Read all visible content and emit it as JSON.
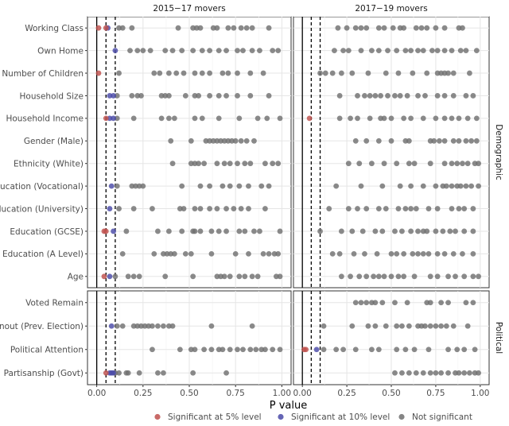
{
  "chart_data": {
    "type": "scatter",
    "xlabel": "P value",
    "xlim": [
      0,
      1
    ],
    "xticks": [
      0,
      0.25,
      0.5,
      0.75,
      1
    ],
    "xtick_labels": [
      "0.00",
      "0.25",
      "0.50",
      "0.75",
      "1.00"
    ],
    "reference_lines": [
      {
        "x": 0,
        "style": "solid"
      },
      {
        "x": 0.05,
        "style": "dashed"
      },
      {
        "x": 0.1,
        "style": "dashed"
      }
    ],
    "columns": [
      "2015−17 movers",
      "2017−19 movers"
    ],
    "rows": [
      {
        "name": "Demographic",
        "variables": [
          "Working Class",
          "Own Home",
          "Number of Children",
          "Household Size",
          "Household Income",
          "Gender (Male)",
          "Ethnicity (White)",
          "Education (Vocational)",
          "Education (University)",
          "Education (GCSE)",
          "Education (A Level)",
          "Age"
        ]
      },
      {
        "name": "Political",
        "variables": [
          "Voted Remain",
          "Turnout (Prev. Election)",
          "Political Attention",
          "Partisanship (Govt)"
        ]
      }
    ],
    "legend": {
      "position": "bottom",
      "items": [
        {
          "key": "sig5",
          "label": "Significant at 5% level",
          "color": "#c0504d"
        },
        {
          "key": "sig10",
          "label": "Significant at 10% level",
          "color": "#4a4aa8"
        },
        {
          "key": "ns",
          "label": "Not significant",
          "color": "#707070"
        }
      ]
    },
    "series": [
      {
        "column": 0,
        "variable": "Working Class",
        "sig5": [
          0.01,
          0.05
        ],
        "sig10": [
          0.06
        ],
        "ns": [
          0.12,
          0.14,
          0.19,
          0.44,
          0.52,
          0.54,
          0.56,
          0.63,
          0.65,
          0.71,
          0.74,
          0.78,
          0.81,
          0.84,
          0.93
        ]
      },
      {
        "column": 0,
        "variable": "Own Home",
        "sig5": [],
        "sig10": [
          0.1
        ],
        "ns": [
          0.18,
          0.22,
          0.25,
          0.29,
          0.37,
          0.41,
          0.46,
          0.52,
          0.57,
          0.61,
          0.66,
          0.7,
          0.76,
          0.79,
          0.84,
          0.88,
          0.95,
          0.98
        ]
      },
      {
        "column": 0,
        "variable": "Number of Children",
        "sig5": [
          0.01
        ],
        "sig10": [],
        "ns": [
          0.12,
          0.31,
          0.34,
          0.39,
          0.43,
          0.47,
          0.53,
          0.57,
          0.61,
          0.68,
          0.71,
          0.76,
          0.83,
          0.9
        ]
      },
      {
        "column": 0,
        "variable": "Household Size",
        "sig5": [],
        "sig10": [
          0.07,
          0.09
        ],
        "ns": [
          0.11,
          0.19,
          0.22,
          0.24,
          0.35,
          0.37,
          0.39,
          0.48,
          0.53,
          0.55,
          0.61,
          0.66,
          0.7,
          0.76,
          0.83,
          0.93
        ]
      },
      {
        "column": 0,
        "variable": "Household Income",
        "sig5": [
          0.05
        ],
        "sig10": [
          0.07,
          0.09
        ],
        "ns": [
          0.11,
          0.2,
          0.35,
          0.39,
          0.42,
          0.53,
          0.57,
          0.66,
          0.77,
          0.87,
          0.92,
          0.99
        ]
      },
      {
        "column": 0,
        "variable": "Gender (Male)",
        "sig5": [],
        "sig10": [],
        "ns": [
          0.4,
          0.51,
          0.59,
          0.61,
          0.63,
          0.65,
          0.67,
          0.69,
          0.71,
          0.73,
          0.75,
          0.78,
          0.81,
          0.85
        ]
      },
      {
        "column": 0,
        "variable": "Ethnicity (White)",
        "sig5": [],
        "sig10": [],
        "ns": [
          0.41,
          0.51,
          0.53,
          0.55,
          0.58,
          0.65,
          0.69,
          0.72,
          0.76,
          0.8,
          0.83,
          0.91,
          0.95,
          0.98
        ]
      },
      {
        "column": 0,
        "variable": "Education (Vocational)",
        "sig5": [],
        "sig10": [
          0.08
        ],
        "ns": [
          0.11,
          0.19,
          0.21,
          0.23,
          0.25,
          0.46,
          0.56,
          0.61,
          0.68,
          0.72,
          0.77,
          0.82,
          0.89,
          0.93
        ]
      },
      {
        "column": 0,
        "variable": "Education (University)",
        "sig5": [],
        "sig10": [
          0.07
        ],
        "ns": [
          0.12,
          0.2,
          0.3,
          0.45,
          0.47,
          0.53,
          0.56,
          0.61,
          0.65,
          0.7,
          0.74,
          0.78,
          0.82,
          0.91
        ]
      },
      {
        "column": 0,
        "variable": "Education (GCSE)",
        "sig5": [
          0.04,
          0.05
        ],
        "sig10": [
          0.09
        ],
        "ns": [
          0.16,
          0.33,
          0.39,
          0.46,
          0.52,
          0.53,
          0.56,
          0.62,
          0.66,
          0.7,
          0.77,
          0.8,
          0.85,
          0.88,
          0.99
        ]
      },
      {
        "column": 0,
        "variable": "Education (A Level)",
        "sig5": [],
        "sig10": [],
        "ns": [
          0.14,
          0.31,
          0.36,
          0.38,
          0.4,
          0.42,
          0.48,
          0.51,
          0.62,
          0.75,
          0.82,
          0.9,
          0.93,
          0.96,
          0.98
        ]
      },
      {
        "column": 0,
        "variable": "Age",
        "sig5": [
          0.04
        ],
        "sig10": [
          0.07
        ],
        "ns": [
          0.1,
          0.17,
          0.2,
          0.23,
          0.37,
          0.52,
          0.65,
          0.67,
          0.69,
          0.72,
          0.77,
          0.8,
          0.84,
          0.87,
          0.97,
          0.99
        ]
      },
      {
        "column": 0,
        "variable": "Voted Remain",
        "sig5": [],
        "sig10": [],
        "ns": []
      },
      {
        "column": 0,
        "variable": "Turnout (Prev. Election)",
        "sig5": [],
        "sig10": [
          0.08
        ],
        "ns": [
          0.11,
          0.14,
          0.2,
          0.22,
          0.24,
          0.26,
          0.28,
          0.3,
          0.33,
          0.36,
          0.39,
          0.41,
          0.62,
          0.84
        ]
      },
      {
        "column": 0,
        "variable": "Political Attention",
        "sig5": [],
        "sig10": [],
        "ns": [
          0.3,
          0.45,
          0.51,
          0.53,
          0.58,
          0.62,
          0.66,
          0.68,
          0.72,
          0.76,
          0.79,
          0.83,
          0.86,
          0.89,
          0.91,
          0.95,
          0.99
        ]
      },
      {
        "column": 0,
        "variable": "Partisanship (Govt)",
        "sig5": [
          0.05
        ],
        "sig10": [
          0.07,
          0.08,
          0.09
        ],
        "ns": [
          0.1,
          0.12,
          0.16,
          0.17,
          0.23,
          0.33,
          0.36,
          0.52,
          0.7
        ]
      },
      {
        "column": 1,
        "variable": "Working Class",
        "sig5": [],
        "sig10": [],
        "ns": [
          0.2,
          0.25,
          0.3,
          0.33,
          0.36,
          0.43,
          0.46,
          0.51,
          0.55,
          0.57,
          0.64,
          0.67,
          0.7,
          0.75,
          0.8,
          0.88,
          0.9
        ]
      },
      {
        "column": 1,
        "variable": "Own Home",
        "sig5": [],
        "sig10": [],
        "ns": [
          0.18,
          0.23,
          0.26,
          0.33,
          0.39,
          0.43,
          0.48,
          0.53,
          0.58,
          0.61,
          0.65,
          0.68,
          0.73,
          0.76,
          0.8,
          0.84,
          0.89,
          0.92,
          0.98
        ]
      },
      {
        "column": 1,
        "variable": "Number of Children",
        "sig5": [],
        "sig10": [],
        "ns": [
          0.1,
          0.13,
          0.17,
          0.22,
          0.28,
          0.37,
          0.47,
          0.54,
          0.62,
          0.7,
          0.76,
          0.78,
          0.8,
          0.82,
          0.85,
          0.94
        ]
      },
      {
        "column": 1,
        "variable": "Household Size",
        "sig5": [],
        "sig10": [],
        "ns": [
          0.21,
          0.31,
          0.35,
          0.38,
          0.41,
          0.44,
          0.48,
          0.52,
          0.55,
          0.59,
          0.65,
          0.69,
          0.76,
          0.8,
          0.85,
          0.92,
          0.96
        ]
      },
      {
        "column": 1,
        "variable": "Household Income",
        "sig5": [
          0.04
        ],
        "sig10": [],
        "ns": [
          0.21,
          0.27,
          0.31,
          0.38,
          0.44,
          0.46,
          0.5,
          0.57,
          0.61,
          0.68,
          0.75,
          0.8,
          0.84,
          0.88,
          0.93,
          0.98
        ]
      },
      {
        "column": 1,
        "variable": "Gender (Male)",
        "sig5": [],
        "sig10": [],
        "ns": [
          0.3,
          0.36,
          0.43,
          0.5,
          0.58,
          0.6,
          0.72,
          0.74,
          0.77,
          0.8,
          0.85,
          0.88,
          0.92,
          0.95,
          0.98
        ]
      },
      {
        "column": 1,
        "variable": "Ethnicity (White)",
        "sig5": [],
        "sig10": [],
        "ns": [
          0.26,
          0.32,
          0.39,
          0.46,
          0.53,
          0.6,
          0.63,
          0.72,
          0.8,
          0.84,
          0.87,
          0.9,
          0.93,
          0.97,
          0.99
        ]
      },
      {
        "column": 1,
        "variable": "Education (Vocational)",
        "sig5": [],
        "sig10": [],
        "ns": [
          0.19,
          0.33,
          0.45,
          0.55,
          0.61,
          0.68,
          0.75,
          0.79,
          0.81,
          0.84,
          0.87,
          0.89,
          0.92,
          0.95,
          0.99
        ]
      },
      {
        "column": 1,
        "variable": "Education (University)",
        "sig5": [],
        "sig10": [],
        "ns": [
          0.15,
          0.26,
          0.31,
          0.36,
          0.43,
          0.47,
          0.54,
          0.58,
          0.61,
          0.64,
          0.71,
          0.76,
          0.84,
          0.88,
          0.91,
          0.96
        ]
      },
      {
        "column": 1,
        "variable": "Education (GCSE)",
        "sig5": [],
        "sig10": [],
        "ns": [
          0.1,
          0.22,
          0.28,
          0.34,
          0.41,
          0.45,
          0.52,
          0.56,
          0.61,
          0.65,
          0.68,
          0.7,
          0.75,
          0.79,
          0.83,
          0.86,
          0.91,
          0.96
        ]
      },
      {
        "column": 1,
        "variable": "Education (A Level)",
        "sig5": [],
        "sig10": [],
        "ns": [
          0.17,
          0.21,
          0.29,
          0.35,
          0.42,
          0.5,
          0.53,
          0.57,
          0.62,
          0.65,
          0.68,
          0.71,
          0.76,
          0.8,
          0.85,
          0.9,
          0.96
        ]
      },
      {
        "column": 1,
        "variable": "Age",
        "sig5": [],
        "sig10": [],
        "ns": [
          0.22,
          0.27,
          0.32,
          0.36,
          0.4,
          0.43,
          0.46,
          0.5,
          0.54,
          0.57,
          0.63,
          0.72,
          0.76,
          0.82,
          0.86,
          0.91,
          0.96,
          0.99
        ]
      },
      {
        "column": 1,
        "variable": "Voted Remain",
        "sig5": [],
        "sig10": [],
        "ns": [
          0.3,
          0.33,
          0.36,
          0.39,
          0.41,
          0.45,
          0.52,
          0.59,
          0.7,
          0.72,
          0.78,
          0.82,
          0.92,
          0.96
        ]
      },
      {
        "column": 1,
        "variable": "Turnout (Prev. Election)",
        "sig5": [],
        "sig10": [],
        "ns": [
          0.12,
          0.28,
          0.37,
          0.41,
          0.47,
          0.53,
          0.56,
          0.6,
          0.65,
          0.67,
          0.69,
          0.72,
          0.75,
          0.78,
          0.81,
          0.85,
          0.93
        ]
      },
      {
        "column": 1,
        "variable": "Political Attention",
        "sig5": [
          0.01,
          0.02
        ],
        "sig10": [
          0.08
        ],
        "ns": [
          0.12,
          0.19,
          0.23,
          0.3,
          0.39,
          0.43,
          0.53,
          0.58,
          0.63,
          0.71,
          0.82,
          0.87,
          0.91,
          0.97
        ]
      },
      {
        "column": 1,
        "variable": "Partisanship (Govt)",
        "sig5": [],
        "sig10": [],
        "ns": [
          0.52,
          0.56,
          0.6,
          0.64,
          0.68,
          0.72,
          0.75,
          0.78,
          0.82,
          0.86,
          0.88,
          0.91,
          0.94,
          0.97,
          0.99
        ]
      }
    ]
  }
}
